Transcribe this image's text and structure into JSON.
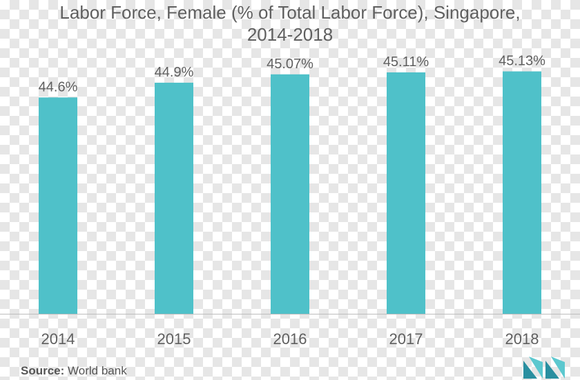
{
  "chart_data": {
    "type": "bar",
    "title_line1": "Labor Force, Female (% of Total Labor Force), Singapore,",
    "title_line2": "2014-2018",
    "categories": [
      "2014",
      "2015",
      "2016",
      "2017",
      "2018"
    ],
    "values": [
      44.6,
      44.9,
      45.07,
      45.11,
      45.13
    ],
    "value_labels": [
      "44.6%",
      "44.9%",
      "45.07%",
      "45.11%",
      "45.13%"
    ],
    "xlabel": "",
    "ylabel": "",
    "ylim": [
      40.2,
      45.6
    ],
    "bar_color": "#4fc1c9",
    "grid": false,
    "legend": "none"
  },
  "source": {
    "label": "Source:",
    "text": "World bank"
  },
  "colors": {
    "axis": "#bdbdbd",
    "text": "#5f5f5f",
    "logo_dark": "#2a8fa0",
    "logo_light": "#5cc8cf"
  },
  "logo": {
    "icon": "mordor-intelligence-logo-icon"
  }
}
